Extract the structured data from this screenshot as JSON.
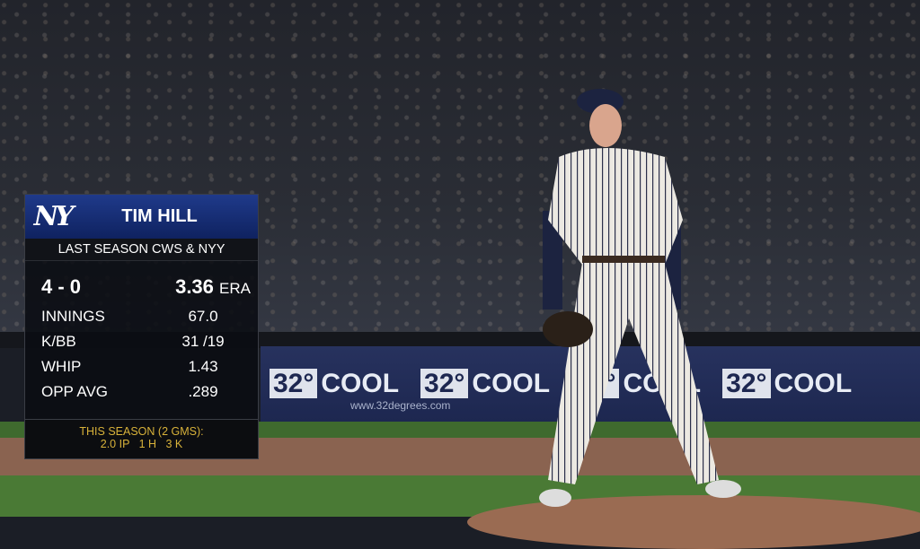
{
  "banner": {
    "ads": [
      "32°",
      "COOL",
      "32°",
      "COOL",
      "32°",
      "COOL",
      "32°",
      "COOL"
    ],
    "url": "www.32degrees.com"
  },
  "card": {
    "team_logo": "NY",
    "player": "TIM HILL",
    "subtitle": "LAST SEASON CWS & NYY",
    "record": "4 - 0",
    "era_value": "3.36",
    "era_label": "ERA",
    "stats": [
      {
        "label": "INNINGS",
        "value": "67.0"
      },
      {
        "label": "K/BB",
        "value": "31 /19"
      },
      {
        "label": "WHIP",
        "value": "1.43"
      },
      {
        "label": "OPP AVG",
        "value": ".289"
      }
    ],
    "footer_line1": "THIS SEASON (2 GMS):",
    "footer_line2": "2.0 IP   1 H   3 K"
  },
  "colors": {
    "header_blue": "#1f3a8a",
    "footer_gold": "#d8b23a",
    "banner_navy": "#1d2750"
  }
}
